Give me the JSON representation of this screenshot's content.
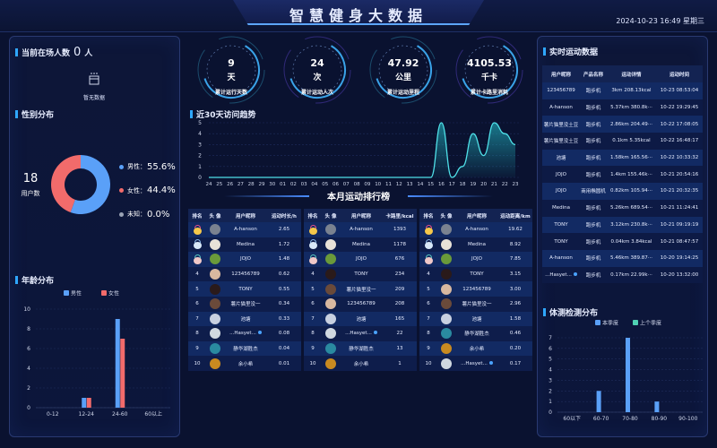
{
  "header": {
    "title": "智慧健身大数据",
    "datetime": "2024-10-23 16:49 星期三"
  },
  "colors": {
    "accent": "#2fa7ff",
    "male": "#5aa0f8",
    "female": "#f26b6b",
    "unknown": "#9aa3b5",
    "last_quarter": "#4fd1b3",
    "line": "#4fe0e8"
  },
  "left": {
    "present": {
      "label": "当前在场人数",
      "count": "0",
      "unit": "人",
      "empty_icon": "empty-box-icon",
      "empty_text": "暂无数据"
    },
    "gender": {
      "title": "性别分布",
      "total": "18",
      "total_label": "用户数",
      "items": [
        {
          "label": "男性：",
          "value": "55.6%",
          "pct": 55.6
        },
        {
          "label": "女性：",
          "value": "44.4%",
          "pct": 44.4
        },
        {
          "label": "未知：",
          "value": "0.0%",
          "pct": 0
        }
      ]
    },
    "age": {
      "title": "年龄分布"
    }
  },
  "stats": [
    {
      "value": "9",
      "unit": "天",
      "label": "累计运行天数"
    },
    {
      "value": "24",
      "unit": "次",
      "label": "累计运动人次"
    },
    {
      "value": "47.92",
      "unit": "公里",
      "label": "累计运动里程"
    },
    {
      "value": "4105.53",
      "unit": "千卡",
      "label": "累计卡路里消耗"
    }
  ],
  "trend": {
    "title": "近30天访问趋势"
  },
  "ranking": {
    "title": "本月运动排行榜",
    "tables": [
      {
        "headers": [
          "排名",
          "头 像",
          "用户昵称",
          "运动时长/h"
        ],
        "rows": [
          [
            "1",
            "A-hanson",
            "2.65"
          ],
          [
            "2",
            "Medina",
            "1.72"
          ],
          [
            "3",
            "JOJO",
            "1.48"
          ],
          [
            "4",
            "123456789",
            "0.62"
          ],
          [
            "5",
            "TONY",
            "0.55"
          ],
          [
            "6",
            "薯片猫里没一",
            "0.34"
          ],
          [
            "7",
            "池塘",
            "0.33"
          ],
          [
            "8",
            "...Hasyet...",
            "0.08"
          ],
          [
            "9",
            "静华湖胜杰",
            "0.04"
          ],
          [
            "10",
            "余小希",
            "0.01"
          ]
        ]
      },
      {
        "headers": [
          "排名",
          "头 像",
          "用户昵称",
          "卡路里/kcal"
        ],
        "rows": [
          [
            "1",
            "A-hanson",
            "1393"
          ],
          [
            "2",
            "Medina",
            "1178"
          ],
          [
            "3",
            "JOJO",
            "676"
          ],
          [
            "4",
            "TONY",
            "234"
          ],
          [
            "5",
            "薯片猫里没一",
            "209"
          ],
          [
            "6",
            "123456789",
            "208"
          ],
          [
            "7",
            "池塘",
            "165"
          ],
          [
            "8",
            "...Hasyet...",
            "22"
          ],
          [
            "9",
            "静华湖胜杰",
            "13"
          ],
          [
            "10",
            "余小希",
            "1"
          ]
        ]
      },
      {
        "headers": [
          "排名",
          "头 像",
          "用户昵称",
          "运动距离/km"
        ],
        "rows": [
          [
            "1",
            "A-hanson",
            "19.62"
          ],
          [
            "2",
            "Medina",
            "8.92"
          ],
          [
            "3",
            "JOJO",
            "7.85"
          ],
          [
            "4",
            "TONY",
            "3.15"
          ],
          [
            "5",
            "123456789",
            "3.00"
          ],
          [
            "6",
            "薯片猫里没一",
            "2.96"
          ],
          [
            "7",
            "池塘",
            "1.58"
          ],
          [
            "8",
            "静华湖胜杰",
            "0.46"
          ],
          [
            "9",
            "余小希",
            "0.20"
          ],
          [
            "10",
            "...Hasyet...",
            "0.17"
          ]
        ]
      }
    ]
  },
  "realtime": {
    "title": "实时运动数据",
    "headers": [
      "用户昵称",
      "产品名称",
      "运动详情",
      "运动时间"
    ],
    "rows": [
      [
        "123456789",
        "跑步机",
        "3km 208.13kcal",
        "10-23 08:53:04"
      ],
      [
        "A-hanson",
        "跑步机",
        "5.37km 380.8k···",
        "10-22 19:29:45"
      ],
      [
        "薯片猫里没土豆",
        "跑步机",
        "2.86km 204.49···",
        "10-22 17:08:05"
      ],
      [
        "薯片猫里没土豆",
        "跑步机",
        "0.1km 5.35kcal",
        "10-22 16:48:17"
      ],
      [
        "池塘",
        "跑步机",
        "1.58km 165.56···",
        "10-22 10:33:32"
      ],
      [
        "JOJO",
        "跑步机",
        "1.4km 155.46k···",
        "10-21 20:54:16"
      ],
      [
        "JOJO",
        "商用椭圆机",
        "0.82km 105.94···",
        "10-21 20:32:35"
      ],
      [
        "Medina",
        "跑步机",
        "5.26km 689.54···",
        "10-21 11:24:41"
      ],
      [
        "TONY",
        "跑步机",
        "3.12km 230.8k···",
        "10-21 09:19:19"
      ],
      [
        "TONY",
        "跑步机",
        "0.04km 3.84kcal",
        "10-21 08:47:57"
      ],
      [
        "A-hanson",
        "跑步机",
        "5.46km 389.87···",
        "10-20 19:14:25"
      ],
      [
        "...Hasyet...",
        "跑步机",
        "0.17km 22.99k···",
        "10-20 13:32:00"
      ]
    ]
  },
  "body_test": {
    "title": "体测检测分布"
  },
  "chart_data": [
    {
      "type": "bar",
      "title": "年龄分布",
      "categories": [
        "0-12",
        "12-24",
        "24-60",
        "60以上"
      ],
      "series": [
        {
          "name": "男性",
          "values": [
            0,
            1,
            9,
            0
          ]
        },
        {
          "name": "女性",
          "values": [
            0,
            1,
            7,
            0
          ]
        }
      ],
      "ylim": [
        0,
        10
      ],
      "yticks": [
        0,
        2,
        4,
        6,
        8,
        10
      ],
      "legend": "top"
    },
    {
      "type": "area",
      "title": "近30天访问趋势",
      "categories": [
        "24",
        "25",
        "26",
        "27",
        "28",
        "29",
        "30",
        "01",
        "02",
        "03",
        "04",
        "05",
        "06",
        "07",
        "08",
        "09",
        "10",
        "11",
        "12",
        "13",
        "14",
        "15",
        "16",
        "17",
        "18",
        "19",
        "20",
        "21",
        "22",
        "23"
      ],
      "values": [
        0,
        0,
        0,
        0,
        0,
        0,
        0,
        0,
        0,
        0,
        0,
        0,
        0,
        0,
        0,
        0,
        0,
        0,
        0,
        0,
        0,
        0,
        5,
        0,
        1,
        4,
        2,
        5,
        4,
        3
      ],
      "ylim": [
        0,
        5
      ],
      "yticks": [
        0,
        1,
        2,
        3,
        4,
        5
      ]
    },
    {
      "type": "bar",
      "title": "体测检测分布",
      "categories": [
        "60以下",
        "60-70",
        "70-80",
        "80-90",
        "90-100"
      ],
      "series": [
        {
          "name": "本季度",
          "values": [
            0,
            2,
            7,
            1,
            0
          ]
        },
        {
          "name": "上个季度",
          "values": [
            0,
            0,
            0,
            0,
            0
          ]
        }
      ],
      "ylim": [
        0,
        7
      ],
      "yticks": [
        0,
        1,
        2,
        3,
        4,
        5,
        6,
        7
      ],
      "legend": "top"
    },
    {
      "type": "pie",
      "title": "性别分布",
      "categories": [
        "男性",
        "女性",
        "未知"
      ],
      "values": [
        55.6,
        44.4,
        0.0
      ]
    }
  ]
}
